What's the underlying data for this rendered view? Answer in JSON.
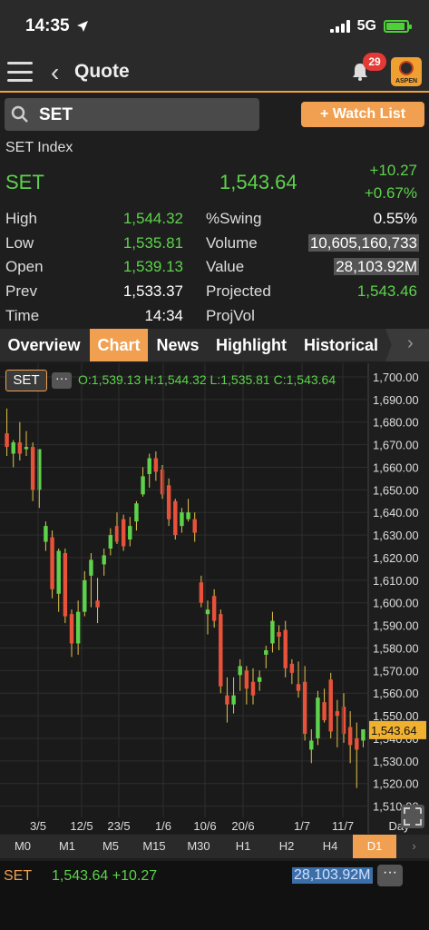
{
  "status": {
    "time": "14:35",
    "network": "5G"
  },
  "header": {
    "title": "Quote",
    "notification_count": "29",
    "logo_text": "ASPEN"
  },
  "search": {
    "value": "SET"
  },
  "watch_button": "+ Watch List",
  "quote": {
    "index_name": "SET Index",
    "symbol": "SET",
    "last": "1,543.64",
    "change": "+10.27",
    "percent": "+0.67%"
  },
  "stats": {
    "high_label": "High",
    "high": "1,544.32",
    "low_label": "Low",
    "low": "1,535.81",
    "open_label": "Open",
    "open": "1,539.13",
    "prev_label": "Prev",
    "prev": "1,533.37",
    "time_label": "Time",
    "time": "14:34",
    "swing_label": "%Swing",
    "swing": "0.55%",
    "volume_label": "Volume",
    "volume": "10,605,160,733",
    "value_label": "Value",
    "value": "28,103.92M",
    "projected_label": "Projected",
    "projected": "1,543.46",
    "projvol_label": "ProjVol"
  },
  "tabs": [
    "Overview",
    "Chart",
    "News",
    "Highlight",
    "Historical"
  ],
  "active_tab": "Chart",
  "chart_header": {
    "symbol": "SET",
    "ohlc": "O:1,539.13  H:1,544.32  L:1,535.81  C:1,543.64"
  },
  "chart_data": {
    "type": "candlestick",
    "y_ticks": [
      "1,700.00",
      "1,690.00",
      "1,680.00",
      "1,670.00",
      "1,660.00",
      "1,650.00",
      "1,640.00",
      "1,630.00",
      "1,620.00",
      "1,610.00",
      "1,600.00",
      "1,590.00",
      "1,580.00",
      "1,570.00",
      "1,560.00",
      "1,550.00",
      "1,540.00",
      "1,530.00",
      "1,520.00",
      "1,510.00"
    ],
    "x_ticks": [
      "3/5",
      "12/5",
      "23/5",
      "1/6",
      "10/6",
      "20/6",
      "1/7",
      "11/7"
    ],
    "ylim": [
      1505,
      1702
    ],
    "current_price_label": "1,543.64",
    "period_label": "Day",
    "candles": [
      [
        1675,
        1686,
        1665,
        1669
      ],
      [
        1666,
        1672,
        1660,
        1671
      ],
      [
        1671,
        1680,
        1663,
        1666
      ],
      [
        1668,
        1676,
        1665,
        1669
      ],
      [
        1669,
        1671,
        1645,
        1650
      ],
      [
        1650,
        1668,
        1642,
        1668
      ],
      [
        1627,
        1636,
        1623,
        1634
      ],
      [
        1629,
        1632,
        1602,
        1606
      ],
      [
        1604,
        1624,
        1596,
        1623
      ],
      [
        1622,
        1624,
        1591,
        1594
      ],
      [
        1595,
        1597,
        1576,
        1582
      ],
      [
        1582,
        1601,
        1577,
        1596
      ],
      [
        1596,
        1614,
        1594,
        1610
      ],
      [
        1612,
        1622,
        1598,
        1619
      ],
      [
        1601,
        1611,
        1591,
        1598
      ],
      [
        1617,
        1624,
        1612,
        1621
      ],
      [
        1624,
        1633,
        1621,
        1630
      ],
      [
        1634,
        1640,
        1626,
        1627
      ],
      [
        1637,
        1639,
        1623,
        1625
      ],
      [
        1628,
        1638,
        1625,
        1634
      ],
      [
        1636,
        1645,
        1632,
        1644
      ],
      [
        1648,
        1660,
        1647,
        1656
      ],
      [
        1657,
        1666,
        1651,
        1664
      ],
      [
        1664,
        1667,
        1654,
        1658
      ],
      [
        1659,
        1661,
        1646,
        1648
      ],
      [
        1652,
        1655,
        1634,
        1637
      ],
      [
        1645,
        1646,
        1628,
        1630
      ],
      [
        1634,
        1642,
        1631,
        1640
      ],
      [
        1637,
        1646,
        1636,
        1640
      ],
      [
        1637,
        1640,
        1627,
        1631
      ],
      [
        1609,
        1612,
        1598,
        1600
      ],
      [
        1595,
        1601,
        1586,
        1597
      ],
      [
        1603,
        1606,
        1589,
        1592
      ],
      [
        1595,
        1597,
        1560,
        1563
      ],
      [
        1559,
        1567,
        1547,
        1555
      ],
      [
        1555,
        1567,
        1551,
        1559
      ],
      [
        1568,
        1575,
        1561,
        1572
      ],
      [
        1570,
        1572,
        1555,
        1562
      ],
      [
        1565,
        1571,
        1555,
        1559
      ],
      [
        1565,
        1570,
        1561,
        1567
      ],
      [
        1577,
        1581,
        1571,
        1579
      ],
      [
        1582,
        1596,
        1578,
        1592
      ],
      [
        1587,
        1590,
        1579,
        1585
      ],
      [
        1588,
        1592,
        1567,
        1571
      ],
      [
        1573,
        1575,
        1564,
        1569
      ],
      [
        1564,
        1574,
        1558,
        1561
      ],
      [
        1565,
        1572,
        1539,
        1542
      ],
      [
        1535,
        1544,
        1529,
        1539
      ],
      [
        1540,
        1561,
        1537,
        1558
      ],
      [
        1556,
        1562,
        1547,
        1548
      ],
      [
        1566,
        1569,
        1540,
        1543
      ],
      [
        1552,
        1557,
        1536,
        1550
      ],
      [
        1554,
        1560,
        1538,
        1542
      ],
      [
        1545,
        1552,
        1529,
        1537
      ],
      [
        1540,
        1547,
        1518,
        1535
      ],
      [
        1539,
        1544,
        1536,
        1544
      ]
    ]
  },
  "timeframes": [
    "M0",
    "M1",
    "M5",
    "M15",
    "M30",
    "H1",
    "H2",
    "H4",
    "D1"
  ],
  "active_timeframe": "D1",
  "footer": {
    "symbol": "SET",
    "price_change": "1,543.64 +10.27",
    "value": "28,103.92M"
  },
  "colors": {
    "up": "#5cd34a",
    "down": "#e8523a",
    "accent": "#f0a050",
    "background": "#1e1e1e"
  }
}
